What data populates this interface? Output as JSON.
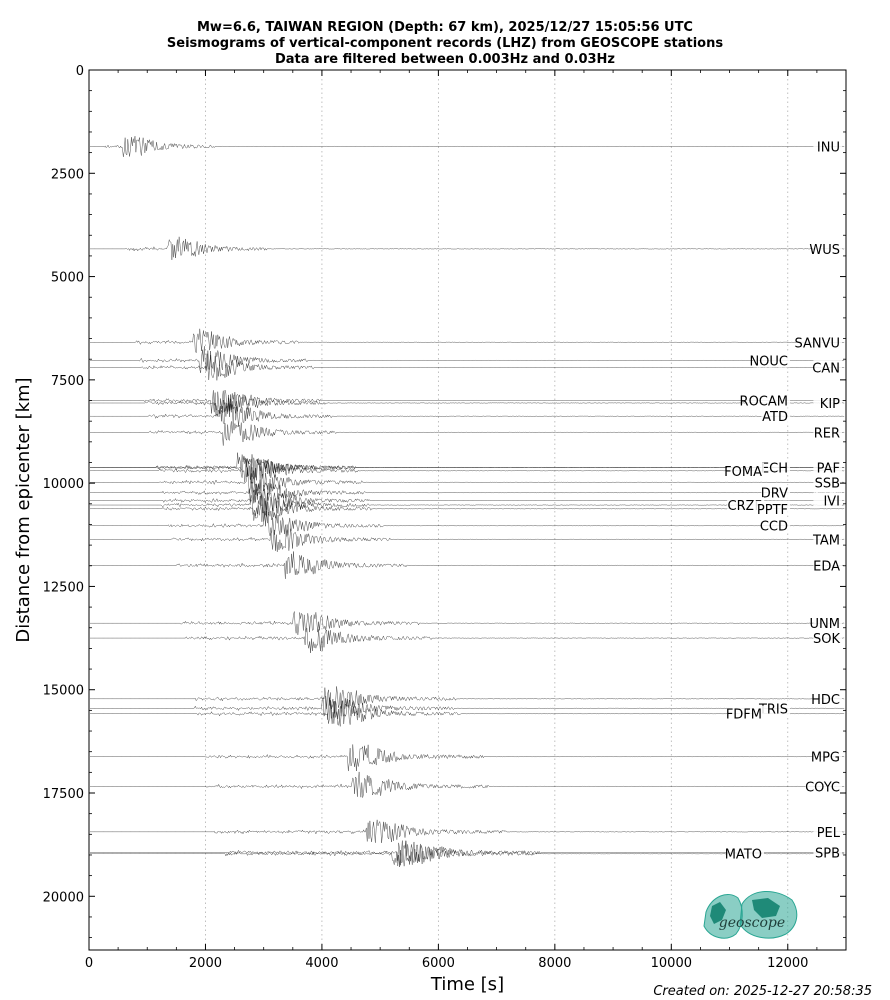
{
  "chart_data": {
    "type": "line",
    "title_lines": [
      "Mw=6.6, TAIWAN REGION (Depth: 67 km), 2025/12/27 15:05:56 UTC",
      "Seismograms of vertical-component records (LHZ) from GEOSCOPE stations",
      "Data are filtered between 0.003Hz and 0.03Hz"
    ],
    "xlabel": "Time [s]",
    "ylabel": "Distance from epicenter [km]",
    "xlim": [
      0,
      13000
    ],
    "ylim": [
      21300,
      0
    ],
    "xticks": [
      0,
      2000,
      4000,
      6000,
      8000,
      10000,
      12000
    ],
    "yticks": [
      0,
      2500,
      5000,
      7500,
      10000,
      12500,
      15000,
      17500,
      20000
    ],
    "grid": "vertical dotted at x ticks",
    "series_color": "#000000",
    "stations": [
      {
        "name": "INU",
        "distance": 1850,
        "arrival": 560,
        "label_side": "right",
        "label_offset": 0
      },
      {
        "name": "WUS",
        "distance": 4330,
        "arrival": 1350,
        "label_side": "right",
        "label_offset": 0
      },
      {
        "name": "SANVU",
        "distance": 6590,
        "arrival": 1780,
        "label_side": "right",
        "label_offset": 0
      },
      {
        "name": "NOUC",
        "distance": 7030,
        "arrival": 1900,
        "label_side": "left",
        "label_offset": 0
      },
      {
        "name": "CAN",
        "distance": 7200,
        "arrival": 2000,
        "label_side": "right",
        "label_offset": 0
      },
      {
        "name": "ROCAM",
        "distance": 8000,
        "arrival": 2100,
        "label_side": "left",
        "label_offset": 0
      },
      {
        "name": "KIP",
        "distance": 8060,
        "arrival": 2150,
        "label_side": "right",
        "label_offset": 0
      },
      {
        "name": "ATD",
        "distance": 8380,
        "arrival": 2250,
        "label_side": "left",
        "label_offset": 0
      },
      {
        "name": "RER",
        "distance": 8770,
        "arrival": 2300,
        "label_side": "right",
        "label_offset": 0
      },
      {
        "name": "ECH",
        "distance": 9620,
        "arrival": 2550,
        "label_side": "left",
        "label_offset": 0
      },
      {
        "name": "PAF",
        "distance": 9620,
        "arrival": 2600,
        "label_side": "right",
        "label_offset": 0
      },
      {
        "name": "FOMA",
        "distance": 9700,
        "arrival": 2650,
        "label_side": "left",
        "label_offset": 1
      },
      {
        "name": "SSB",
        "distance": 9980,
        "arrival": 2700,
        "label_side": "right",
        "label_offset": 0
      },
      {
        "name": "DRV",
        "distance": 10230,
        "arrival": 2750,
        "label_side": "left",
        "label_offset": 0
      },
      {
        "name": "IVI",
        "distance": 10420,
        "arrival": 2800,
        "label_side": "right",
        "label_offset": 0
      },
      {
        "name": "CRZF",
        "distance": 10530,
        "arrival": 2780,
        "label_side": "left",
        "label_offset": 1
      },
      {
        "name": "PPTF",
        "distance": 10620,
        "arrival": 2820,
        "label_side": "left",
        "label_offset": 0
      },
      {
        "name": "CCD",
        "distance": 11030,
        "arrival": 3000,
        "label_side": "left",
        "label_offset": 0
      },
      {
        "name": "TAM",
        "distance": 11360,
        "arrival": 3100,
        "label_side": "right",
        "label_offset": 0
      },
      {
        "name": "EDA",
        "distance": 11990,
        "arrival": 3350,
        "label_side": "right",
        "label_offset": 0
      },
      {
        "name": "UNM",
        "distance": 13390,
        "arrival": 3500,
        "label_side": "right",
        "label_offset": 0
      },
      {
        "name": "SOK",
        "distance": 13750,
        "arrival": 3700,
        "label_side": "right",
        "label_offset": 0
      },
      {
        "name": "HDC",
        "distance": 15220,
        "arrival": 4050,
        "label_side": "right",
        "label_offset": 0
      },
      {
        "name": "TRIS",
        "distance": 15450,
        "arrival": 4000,
        "label_side": "left",
        "label_offset": 0
      },
      {
        "name": "FDFM",
        "distance": 15580,
        "arrival": 4100,
        "label_side": "left",
        "label_offset": 1
      },
      {
        "name": "MPG",
        "distance": 16620,
        "arrival": 4450,
        "label_side": "right",
        "label_offset": 0
      },
      {
        "name": "COYC",
        "distance": 17340,
        "arrival": 4500,
        "label_side": "right",
        "label_offset": 0
      },
      {
        "name": "PEL",
        "distance": 18440,
        "arrival": 4750,
        "label_side": "right",
        "label_offset": 0
      },
      {
        "name": "MATO",
        "distance": 18970,
        "arrival": 5200,
        "label_side": "left",
        "label_offset": 1
      },
      {
        "name": "SPB",
        "distance": 18940,
        "arrival": 5300,
        "label_side": "right",
        "label_offset": 0
      }
    ]
  },
  "logo": {
    "text": "geoscope",
    "color": "#2aa693"
  },
  "footer": {
    "created": "Created on: 2025-12-27 20:58:35"
  }
}
